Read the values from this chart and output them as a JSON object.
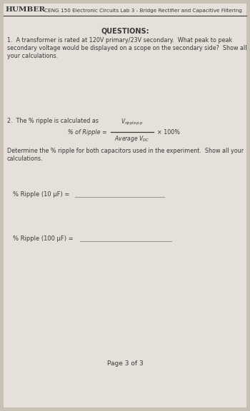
{
  "bg_color": "#c8c0b4",
  "paper_color": "#e5e1da",
  "header_humber": "HUMBER",
  "header_course": "CENG 150 Electronic Circuits Lab 3 - Bridge Rectifier and Capacitive Filtering",
  "section_title": "QUESTIONS:",
  "q1_line1": "1.  A transformer is rated at 120V primary/23V secondary.  What peak to peak",
  "q1_line2": "secondary voltage would be displayed on a scope on the secondary side?  Show all",
  "q1_line3": "your calculations.",
  "q2_intro": "2.  The % ripple is calculated as",
  "formula_left": "% of Ripple = ",
  "formula_num": "V",
  "formula_num_sub": "ripple p-p",
  "formula_den": "Average V",
  "formula_den_sub": "DC",
  "formula_mult": "× 100%",
  "q2_body1": "Determine the % ripple for both capacitors used in the experiment.  Show all your",
  "q2_body2": "calculations.",
  "ripple_10": "% Ripple (10 µF) = ",
  "ripple_100": "% Ripple (100 µF) = ",
  "page_text": "Page 3 of 3",
  "text_color": "#383838",
  "line_color": "#909090",
  "header_line_color": "#383838"
}
